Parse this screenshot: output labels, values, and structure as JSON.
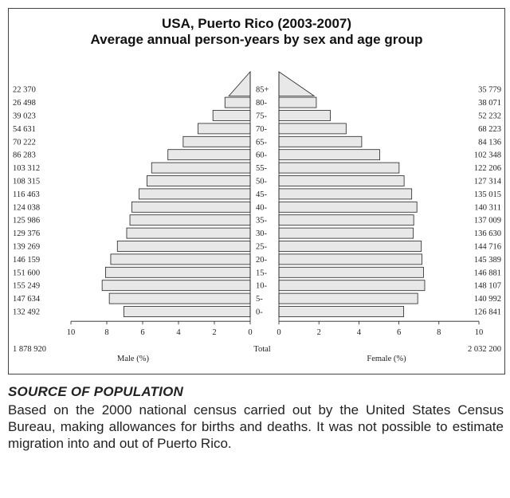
{
  "chart_data": {
    "type": "bar",
    "title": "USA, Puerto Rico (2003-2007)",
    "subtitle": "Average annual person-years by sex and age group",
    "age_groups": [
      "85+",
      "80-",
      "75-",
      "70-",
      "65-",
      "60-",
      "55-",
      "50-",
      "45-",
      "40-",
      "35-",
      "30-",
      "25-",
      "20-",
      "15-",
      "10-",
      "5-",
      "0-"
    ],
    "series": [
      {
        "name": "Male (%)",
        "counts": [
          "22 370",
          "26 498",
          "39 023",
          "54 631",
          "70 222",
          "86 283",
          "103 312",
          "108 315",
          "116 463",
          "124 038",
          "125 986",
          "129 376",
          "139 269",
          "146 159",
          "151 600",
          "155 249",
          "147 634",
          "132 492"
        ],
        "values": [
          1.19,
          1.41,
          2.08,
          2.91,
          3.74,
          4.59,
          5.5,
          5.76,
          6.2,
          6.6,
          6.71,
          6.89,
          7.41,
          7.78,
          8.07,
          8.26,
          7.86,
          7.05
        ],
        "total": "1 878 920"
      },
      {
        "name": "Female (%)",
        "counts": [
          "35 779",
          "38 071",
          "52 232",
          "68 223",
          "84 136",
          "102 348",
          "122 206",
          "127 314",
          "135 015",
          "140 311",
          "137 009",
          "136 630",
          "144 716",
          "145 389",
          "146 881",
          "148 107",
          "140 992",
          "126 841"
        ],
        "values": [
          1.76,
          1.87,
          2.57,
          3.36,
          4.14,
          5.04,
          6.01,
          6.26,
          6.64,
          6.9,
          6.74,
          6.72,
          7.12,
          7.15,
          7.23,
          7.29,
          6.94,
          6.24
        ],
        "total": "2 032 200"
      }
    ],
    "x_ticks": [
      "10",
      "8",
      "6",
      "4",
      "2",
      "0"
    ],
    "xlim": [
      0,
      10
    ],
    "total_label": "Total",
    "grid": false
  },
  "source": {
    "heading": "SOURCE OF POPULATION",
    "body": "Based on the 2000 national census carried out by the United States Census Bureau, making allowances for births and deaths. It was not possible to estimate migration into and out of Puerto Rico."
  }
}
